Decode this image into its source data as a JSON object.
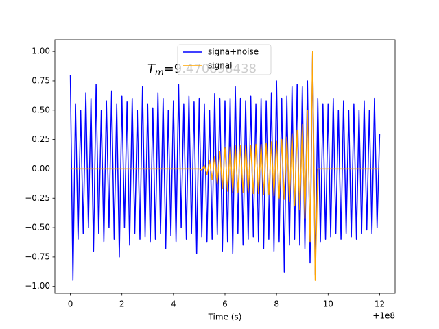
{
  "chart_data": {
    "type": "line",
    "xlabel": "Time (s)",
    "x_offset_label": "+1e8",
    "annotation": {
      "symbol": "T",
      "subscript": "m",
      "text": "=9.470898438"
    },
    "x": [
      0,
      0.1,
      0.2,
      0.3,
      0.4,
      0.5,
      0.6,
      0.7,
      0.8,
      0.9,
      1,
      1.1,
      1.2,
      1.3,
      1.4,
      1.5,
      1.6,
      1.7,
      1.8,
      1.9,
      2,
      2.1,
      2.2,
      2.3,
      2.4,
      2.5,
      2.6,
      2.7,
      2.8,
      2.9,
      3,
      3.1,
      3.2,
      3.3,
      3.4,
      3.5,
      3.6,
      3.7,
      3.8,
      3.9,
      4,
      4.1,
      4.2,
      4.3,
      4.4,
      4.5,
      4.6,
      4.7,
      4.8,
      4.9,
      5,
      5.1,
      5.2,
      5.3,
      5.4,
      5.5,
      5.6,
      5.7,
      5.8,
      5.9,
      6,
      6.1,
      6.2,
      6.3,
      6.4,
      6.5,
      6.6,
      6.7,
      6.8,
      6.9,
      7,
      7.1,
      7.2,
      7.3,
      7.4,
      7.5,
      7.6,
      7.7,
      7.8,
      7.9,
      8,
      8.1,
      8.2,
      8.3,
      8.4,
      8.5,
      8.6,
      8.7,
      8.8,
      8.9,
      9,
      9.1,
      9.2,
      9.3,
      9.4,
      9.5,
      9.6,
      9.7,
      9.8,
      9.9,
      10,
      10.1,
      10.2,
      10.3,
      10.4,
      10.5,
      10.6,
      10.7,
      10.8,
      10.9,
      11,
      11.1,
      11.2,
      11.3,
      11.4,
      11.5,
      11.6,
      11.7,
      11.8,
      11.9,
      12
    ],
    "series": [
      {
        "name": "signa+noise",
        "color": "#0000ff",
        "values": [
          0.8,
          -0.95,
          0.55,
          -0.6,
          0.5,
          -0.55,
          0.65,
          -0.5,
          0.6,
          -0.7,
          0.72,
          -0.55,
          0.5,
          -0.62,
          0.58,
          -0.5,
          0.66,
          -0.6,
          0.55,
          -0.75,
          0.62,
          -0.5,
          0.57,
          -0.65,
          0.6,
          -0.55,
          0.5,
          -0.6,
          0.7,
          -0.58,
          0.55,
          -0.62,
          0.52,
          -0.6,
          0.65,
          -0.55,
          0.6,
          -0.68,
          0.5,
          -0.57,
          0.58,
          -0.62,
          0.72,
          -0.5,
          0.55,
          -0.6,
          0.62,
          -0.55,
          0.57,
          -0.72,
          0.6,
          -0.58,
          0.55,
          -0.62,
          0.5,
          -0.6,
          0.64,
          -0.56,
          0.6,
          -0.7,
          0.58,
          -0.62,
          0.6,
          -0.72,
          0.7,
          -0.55,
          0.6,
          -0.65,
          0.58,
          -0.6,
          0.62,
          -0.58,
          0.55,
          -0.62,
          0.6,
          -0.68,
          0.58,
          -0.6,
          0.65,
          -0.7,
          0.75,
          -0.62,
          0.6,
          -0.88,
          0.62,
          -0.65,
          0.7,
          -0.6,
          0.72,
          -0.65,
          0.7,
          -0.68,
          0.75,
          -0.8,
          1.0,
          -0.9,
          0.6,
          -0.62,
          0.55,
          -0.6,
          0.55,
          -0.58,
          0.6,
          -0.55,
          0.5,
          -0.6,
          0.58,
          -0.55,
          0.5,
          -0.58,
          0.55,
          -0.6,
          0.5,
          -0.55,
          0.58,
          -0.52,
          0.5,
          -0.55,
          0.6,
          -0.5,
          0.3
        ]
      },
      {
        "name": "signal",
        "color": "#ffa500",
        "values": [
          0,
          0,
          0,
          0,
          0,
          0,
          0,
          0,
          0,
          0,
          0,
          0,
          0,
          0,
          0,
          0,
          0,
          0,
          0,
          0,
          0,
          0,
          0,
          0,
          0,
          0,
          0,
          0,
          0,
          0,
          0,
          0,
          0,
          0,
          0,
          0,
          0,
          0,
          0,
          0,
          0,
          0,
          0,
          0,
          0,
          0,
          0,
          0,
          0,
          0,
          0,
          -0.01,
          0.03,
          -0.05,
          0.07,
          -0.09,
          0.11,
          -0.13,
          0.15,
          -0.17,
          0.18,
          -0.19,
          0.19,
          -0.2,
          0.2,
          -0.2,
          0.2,
          -0.2,
          0.2,
          -0.2,
          0.2,
          -0.21,
          0.21,
          -0.21,
          0.21,
          -0.22,
          0.22,
          -0.22,
          0.23,
          -0.23,
          0.24,
          -0.25,
          0.25,
          -0.26,
          0.27,
          -0.28,
          0.3,
          -0.31,
          0.33,
          -0.35,
          0.38,
          -0.42,
          0.5,
          -0.62,
          1.0,
          -0.95,
          0,
          0,
          0,
          0,
          0,
          0,
          0,
          0,
          0,
          0,
          0,
          0,
          0,
          0,
          0,
          0,
          0,
          0,
          0,
          0,
          0,
          0,
          0,
          0,
          0
        ]
      }
    ],
    "xlim": [
      -0.6,
      12.6
    ],
    "ylim": [
      -1.06,
      1.1
    ],
    "xticks": [
      0,
      2,
      4,
      6,
      8,
      10,
      12
    ],
    "yticks": [
      {
        "value": -1,
        "label": "−1.00"
      },
      {
        "value": -0.75,
        "label": "−0.75"
      },
      {
        "value": -0.5,
        "label": "−0.50"
      },
      {
        "value": -0.25,
        "label": "−0.25"
      },
      {
        "value": 0,
        "label": "0.00"
      },
      {
        "value": 0.25,
        "label": "0.25"
      },
      {
        "value": 0.5,
        "label": "0.50"
      },
      {
        "value": 0.75,
        "label": "0.75"
      },
      {
        "value": 1,
        "label": "1.00"
      }
    ],
    "legend": "upper center"
  }
}
